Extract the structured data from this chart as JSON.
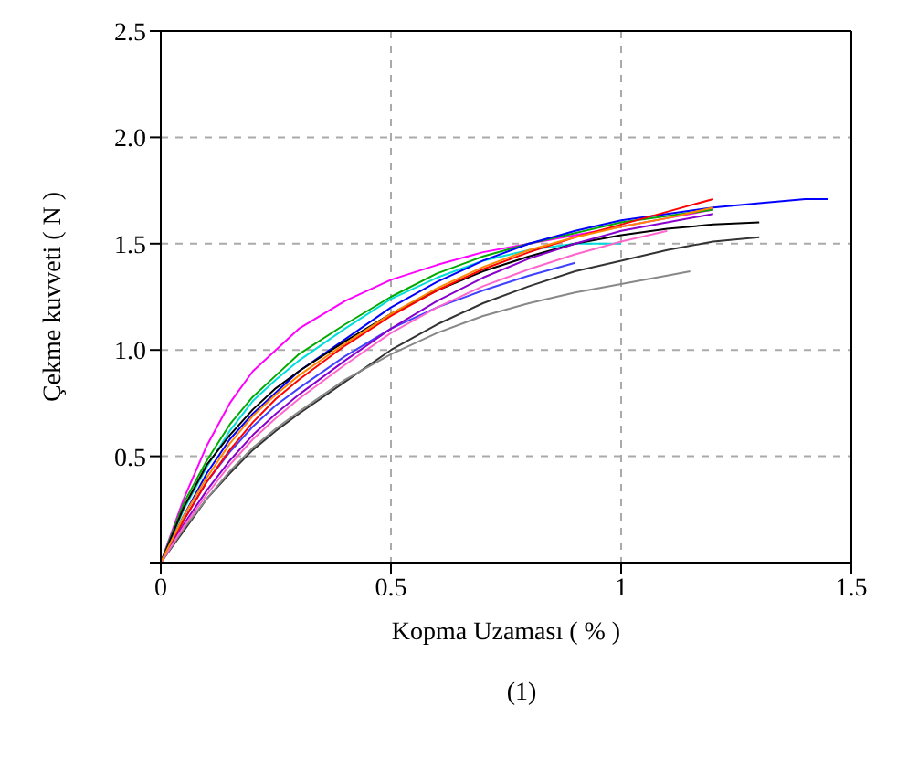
{
  "chart_data": {
    "type": "line",
    "xlabel": "Kopma Uzaması ( % )",
    "ylabel": "Çekme kuvveti ( N )",
    "annotations": [
      "(1)"
    ],
    "xlim": [
      0,
      1.5
    ],
    "ylim": [
      0,
      2.5
    ],
    "xticks": [
      0,
      0.5,
      1,
      1.5
    ],
    "yticks": [
      {
        "value": 0,
        "label": null
      },
      0.5,
      {
        "value": 1,
        "label": "1.0"
      },
      1.5,
      {
        "value": 2,
        "label": "2.0"
      },
      2.5
    ],
    "grid": true,
    "series": [
      {
        "color": "#ff00ff",
        "x": [
          0,
          0.05,
          0.1,
          0.15,
          0.2,
          0.25,
          0.3,
          0.4,
          0.5,
          0.6,
          0.7,
          0.8,
          0.9,
          1.0,
          1.1,
          1.2
        ],
        "values": [
          0,
          0.3,
          0.55,
          0.75,
          0.9,
          1.0,
          1.1,
          1.23,
          1.33,
          1.4,
          1.46,
          1.5,
          1.54,
          1.58,
          1.62,
          1.66
        ]
      },
      {
        "color": "#00aa00",
        "x": [
          0,
          0.05,
          0.1,
          0.15,
          0.2,
          0.25,
          0.3,
          0.4,
          0.5,
          0.6,
          0.7,
          0.8,
          0.9,
          1.0,
          1.1,
          1.2
        ],
        "values": [
          0,
          0.28,
          0.48,
          0.65,
          0.78,
          0.88,
          0.98,
          1.12,
          1.25,
          1.36,
          1.44,
          1.5,
          1.55,
          1.6,
          1.63,
          1.66
        ]
      },
      {
        "color": "#00dddd",
        "x": [
          0,
          0.05,
          0.1,
          0.15,
          0.2,
          0.25,
          0.3,
          0.4,
          0.5,
          0.6,
          0.7,
          0.8,
          0.9,
          1.0
        ],
        "values": [
          0,
          0.25,
          0.45,
          0.62,
          0.76,
          0.86,
          0.95,
          1.1,
          1.24,
          1.34,
          1.42,
          1.47,
          1.5,
          1.5
        ]
      },
      {
        "color": "#0000ff",
        "x": [
          0,
          0.05,
          0.1,
          0.15,
          0.2,
          0.25,
          0.3,
          0.4,
          0.5,
          0.6,
          0.7,
          0.8,
          0.9,
          1.0,
          1.1,
          1.2,
          1.3,
          1.4,
          1.45
        ],
        "values": [
          0,
          0.22,
          0.42,
          0.58,
          0.7,
          0.8,
          0.9,
          1.05,
          1.2,
          1.32,
          1.42,
          1.5,
          1.56,
          1.61,
          1.64,
          1.67,
          1.69,
          1.71,
          1.71
        ]
      },
      {
        "color": "#000000",
        "x": [
          0,
          0.05,
          0.1,
          0.15,
          0.2,
          0.25,
          0.3,
          0.4,
          0.5,
          0.6,
          0.7,
          0.8,
          0.9,
          1.0,
          1.1,
          1.2,
          1.3
        ],
        "values": [
          0,
          0.26,
          0.46,
          0.6,
          0.72,
          0.82,
          0.9,
          1.04,
          1.17,
          1.28,
          1.37,
          1.44,
          1.5,
          1.54,
          1.57,
          1.59,
          1.6
        ]
      },
      {
        "color": "#333333",
        "x": [
          0,
          0.05,
          0.1,
          0.15,
          0.2,
          0.25,
          0.3,
          0.4,
          0.5,
          0.6,
          0.7,
          0.8,
          0.9,
          1.0,
          1.1,
          1.2,
          1.3
        ],
        "values": [
          0,
          0.15,
          0.3,
          0.42,
          0.53,
          0.62,
          0.7,
          0.85,
          1.0,
          1.12,
          1.22,
          1.3,
          1.37,
          1.42,
          1.47,
          1.51,
          1.53
        ]
      },
      {
        "color": "#888888",
        "x": [
          0,
          0.05,
          0.1,
          0.15,
          0.2,
          0.25,
          0.3,
          0.4,
          0.5,
          0.6,
          0.7,
          0.8,
          0.9,
          1.0,
          1.1,
          1.15
        ],
        "values": [
          0,
          0.16,
          0.3,
          0.43,
          0.54,
          0.63,
          0.71,
          0.86,
          0.98,
          1.08,
          1.16,
          1.22,
          1.27,
          1.31,
          1.35,
          1.37
        ]
      },
      {
        "color": "#4040ff",
        "x": [
          0,
          0.05,
          0.1,
          0.15,
          0.2,
          0.25,
          0.3,
          0.4,
          0.5,
          0.6,
          0.7,
          0.8,
          0.9
        ],
        "values": [
          0,
          0.2,
          0.38,
          0.52,
          0.64,
          0.74,
          0.82,
          0.97,
          1.1,
          1.2,
          1.28,
          1.35,
          1.41
        ]
      },
      {
        "color": "#ff0000",
        "x": [
          0,
          0.05,
          0.1,
          0.15,
          0.2,
          0.25,
          0.3,
          0.4,
          0.5,
          0.6,
          0.7,
          0.8,
          0.9,
          1.0,
          1.1,
          1.2
        ],
        "values": [
          0,
          0.2,
          0.38,
          0.53,
          0.66,
          0.77,
          0.86,
          1.02,
          1.16,
          1.28,
          1.38,
          1.46,
          1.53,
          1.59,
          1.65,
          1.71
        ]
      },
      {
        "color": "#8800cc",
        "x": [
          0,
          0.05,
          0.1,
          0.15,
          0.2,
          0.25,
          0.3,
          0.4,
          0.5,
          0.6,
          0.7,
          0.8,
          0.9,
          1.0,
          1.1,
          1.2
        ],
        "values": [
          0,
          0.18,
          0.34,
          0.48,
          0.6,
          0.7,
          0.79,
          0.95,
          1.1,
          1.23,
          1.34,
          1.43,
          1.5,
          1.56,
          1.6,
          1.64
        ]
      },
      {
        "color": "#ff66cc",
        "x": [
          0,
          0.05,
          0.1,
          0.15,
          0.2,
          0.25,
          0.3,
          0.4,
          0.5,
          0.6,
          0.7,
          0.8,
          0.9,
          1.0,
          1.1
        ],
        "values": [
          0,
          0.17,
          0.32,
          0.46,
          0.58,
          0.68,
          0.77,
          0.93,
          1.08,
          1.2,
          1.3,
          1.38,
          1.45,
          1.51,
          1.56
        ]
      },
      {
        "color": "#ff8800",
        "x": [
          0,
          0.05,
          0.1,
          0.15,
          0.2,
          0.25,
          0.3,
          0.4,
          0.5,
          0.6,
          0.7,
          0.8,
          0.9,
          1.0,
          1.1,
          1.2
        ],
        "values": [
          0,
          0.22,
          0.4,
          0.56,
          0.69,
          0.79,
          0.88,
          1.03,
          1.17,
          1.29,
          1.39,
          1.47,
          1.53,
          1.58,
          1.62,
          1.67
        ]
      }
    ]
  }
}
